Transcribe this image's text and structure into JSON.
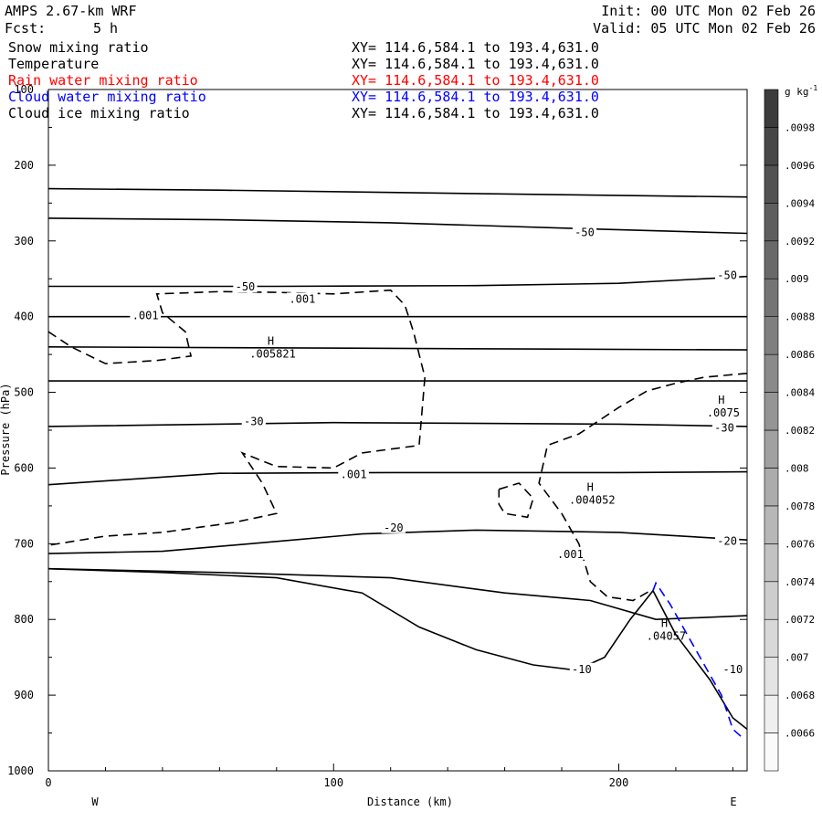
{
  "header": {
    "model": "AMPS 2.67-km WRF",
    "fcst_label": "Fcst:",
    "fcst_value": "5 h",
    "init": "Init: 00 UTC Mon 02 Feb 26",
    "valid": "Valid: 05 UTC Mon 02 Feb 26"
  },
  "fields": [
    {
      "name": "Snow mixing ratio",
      "xy": "XY= 114.6,584.1 to 193.4,631.0",
      "color": "#000000"
    },
    {
      "name": "Temperature",
      "xy": "XY= 114.6,584.1 to 193.4,631.0",
      "color": "#000000"
    },
    {
      "name": "Rain water mixing ratio",
      "xy": "XY= 114.6,584.1 to 193.4,631.0",
      "color": "#ff0000"
    },
    {
      "name": "Cloud water mixing ratio",
      "xy": "XY= 114.6,584.1 to 193.4,631.0",
      "color": "#0000ff"
    },
    {
      "name": "Cloud ice mixing ratio",
      "xy": "XY= 114.6,584.1 to 193.4,631.0",
      "color": "#000000"
    }
  ],
  "chart_data": {
    "type": "contour cross-section",
    "xlabel": "Distance (km)",
    "ylabel": "Pressure (hPa)",
    "xlim": [
      0,
      245
    ],
    "ylim": [
      1000,
      100
    ],
    "x_ticks": [
      0,
      100,
      200
    ],
    "y_ticks": [
      100,
      200,
      300,
      400,
      500,
      600,
      700,
      800,
      900,
      1000
    ],
    "x_end_labels": {
      "left": "W",
      "right": "E"
    },
    "colorbar": {
      "unit": "g kg",
      "unit_sup": "-1",
      "ticks": [
        ".0066",
        ".0068",
        ".007",
        ".0072",
        ".0074",
        ".0076",
        ".0078",
        ".008",
        ".0082",
        ".0084",
        ".0086",
        ".0088",
        ".009",
        ".0092",
        ".0094",
        ".0096",
        ".0098"
      ],
      "min": 0.0064,
      "max": 0.01
    },
    "temperature_contours": [
      {
        "points": [
          [
            0,
            231
          ],
          [
            60,
            233
          ],
          [
            120,
            236
          ],
          [
            180,
            239
          ],
          [
            245,
            242
          ]
        ]
      },
      {
        "points": [
          [
            0,
            270
          ],
          [
            60,
            272
          ],
          [
            120,
            276
          ],
          [
            180,
            283
          ],
          [
            245,
            290
          ]
        ]
      },
      {
        "points": [
          [
            0,
            360
          ],
          [
            80,
            360
          ],
          [
            150,
            359
          ],
          [
            200,
            356
          ],
          [
            245,
            347
          ]
        ]
      },
      {
        "points": [
          [
            0,
            400
          ],
          [
            245,
            400
          ]
        ]
      },
      {
        "points": [
          [
            0,
            440
          ],
          [
            245,
            444
          ]
        ]
      },
      {
        "points": [
          [
            0,
            485
          ],
          [
            245,
            485
          ]
        ]
      },
      {
        "points": [
          [
            0,
            545
          ],
          [
            100,
            540
          ],
          [
            200,
            542
          ],
          [
            245,
            545
          ]
        ]
      },
      {
        "points": [
          [
            0,
            622
          ],
          [
            60,
            607
          ],
          [
            120,
            606
          ],
          [
            200,
            606
          ],
          [
            245,
            605
          ]
        ]
      },
      {
        "points": [
          [
            0,
            713
          ],
          [
            40,
            710
          ],
          [
            80,
            697
          ],
          [
            110,
            687
          ],
          [
            150,
            682
          ],
          [
            200,
            685
          ],
          [
            245,
            695
          ]
        ]
      },
      {
        "points": [
          [
            0,
            733
          ],
          [
            60,
            738
          ],
          [
            120,
            745
          ],
          [
            160,
            765
          ],
          [
            190,
            775
          ],
          [
            213,
            800
          ],
          [
            245,
            795
          ]
        ]
      }
    ],
    "temperature_labels": [
      {
        "x": 188,
        "y": 290,
        "text": "-50"
      },
      {
        "x": 238,
        "y": 347,
        "text": "-50"
      },
      {
        "x": 69,
        "y": 362,
        "text": "-50"
      },
      {
        "x": 72,
        "y": 540,
        "text": "-30"
      },
      {
        "x": 237,
        "y": 548,
        "text": "-30"
      },
      {
        "x": 121,
        "y": 680,
        "text": "-20"
      },
      {
        "x": 238,
        "y": 698,
        "text": "-20"
      },
      {
        "x": 187,
        "y": 867,
        "text": "-10"
      },
      {
        "x": 240,
        "y": 867,
        "text": "-10"
      }
    ],
    "terrain": [
      [
        0,
        733
      ],
      [
        40,
        738
      ],
      [
        80,
        745
      ],
      [
        110,
        765
      ],
      [
        130,
        810
      ],
      [
        150,
        840
      ],
      [
        170,
        860
      ],
      [
        185,
        867
      ],
      [
        195,
        850
      ],
      [
        204,
        800
      ],
      [
        212,
        762
      ],
      [
        220,
        820
      ],
      [
        232,
        880
      ],
      [
        240,
        930
      ],
      [
        245,
        945
      ]
    ],
    "snow_contours": [
      {
        "style": "dashed",
        "points": [
          [
            0,
            420
          ],
          [
            8,
            440
          ],
          [
            20,
            462
          ],
          [
            38,
            458
          ],
          [
            50,
            452
          ],
          [
            48,
            420
          ],
          [
            40,
            395
          ],
          [
            38,
            370
          ],
          [
            60,
            367
          ],
          [
            80,
            368
          ],
          [
            100,
            370
          ],
          [
            120,
            365
          ],
          [
            125,
            385
          ],
          [
            128,
            420
          ],
          [
            132,
            480
          ],
          [
            130,
            570
          ],
          [
            110,
            580
          ],
          [
            100,
            600
          ],
          [
            80,
            598
          ],
          [
            68,
            580
          ],
          [
            75,
            620
          ],
          [
            80,
            660
          ],
          [
            65,
            672
          ],
          [
            40,
            685
          ],
          [
            20,
            690
          ],
          [
            0,
            702
          ]
        ]
      },
      {
        "style": "dashed",
        "points": [
          [
            245,
            475
          ],
          [
            230,
            480
          ],
          [
            220,
            488
          ],
          [
            210,
            498
          ],
          [
            200,
            520
          ],
          [
            186,
            555
          ],
          [
            175,
            570
          ],
          [
            172,
            620
          ],
          [
            180,
            660
          ],
          [
            186,
            700
          ],
          [
            190,
            750
          ],
          [
            196,
            770
          ],
          [
            205,
            775
          ],
          [
            212,
            760
          ]
        ]
      },
      {
        "style": "dashed",
        "points": [
          [
            158,
            628
          ],
          [
            165,
            620
          ],
          [
            170,
            640
          ],
          [
            168,
            665
          ],
          [
            160,
            660
          ],
          [
            158,
            648
          ],
          [
            158,
            628
          ]
        ]
      }
    ],
    "snow_labels": [
      {
        "x": 34,
        "y": 400,
        "text": ".001"
      },
      {
        "x": 89,
        "y": 378,
        "text": ".001"
      },
      {
        "x": 107,
        "y": 610,
        "text": ".001"
      },
      {
        "x": 183,
        "y": 715,
        "text": ".001"
      }
    ],
    "cloud_water_contour": {
      "style": "dashed",
      "color": "#0000ff",
      "points": [
        [
          212,
          762
        ],
        [
          213,
          752
        ],
        [
          218,
          780
        ],
        [
          224,
          820
        ],
        [
          230,
          860
        ],
        [
          236,
          900
        ],
        [
          240,
          945
        ],
        [
          243,
          955
        ]
      ]
    },
    "maxima": [
      {
        "x": 78,
        "y": 437,
        "letter": "H",
        "value": ".005821",
        "color": "#000000"
      },
      {
        "x": 236,
        "y": 515,
        "letter": "H",
        "value": ".0075",
        "color": "#000000"
      },
      {
        "x": 190,
        "y": 630,
        "letter": "H",
        "value": ".004052",
        "color": "#000000"
      },
      {
        "x": 216,
        "y": 810,
        "letter": "H",
        "value": ".04057",
        "color": "#0000ff"
      }
    ]
  }
}
